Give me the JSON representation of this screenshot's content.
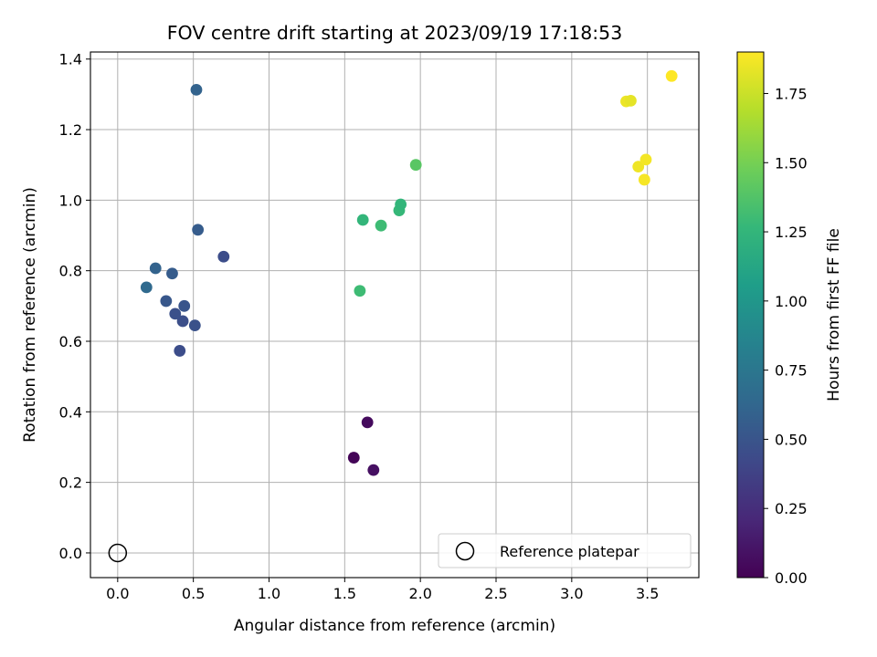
{
  "chart_data": {
    "type": "scatter",
    "title": "FOV centre drift starting at 2023/09/19 17:18:53",
    "xlabel": "Angular distance from reference (arcmin)",
    "ylabel": "Rotation from reference (arcmin)",
    "xlim": [
      -0.18,
      3.84
    ],
    "ylim": [
      -0.07,
      1.42
    ],
    "x_ticks": [
      "0.0",
      "0.5",
      "1.0",
      "1.5",
      "2.0",
      "2.5",
      "3.0",
      "3.5"
    ],
    "x_tick_values": [
      0,
      0.5,
      1.0,
      1.5,
      2.0,
      2.5,
      3.0,
      3.5
    ],
    "y_ticks": [
      "0.0",
      "0.2",
      "0.4",
      "0.6",
      "0.8",
      "1.0",
      "1.2",
      "1.4"
    ],
    "y_tick_values": [
      0,
      0.2,
      0.4,
      0.6,
      0.8,
      1.0,
      1.2,
      1.4
    ],
    "grid": true,
    "colorbar": {
      "label": "Hours from first FF file",
      "colormap": "viridis",
      "range": [
        0,
        1.9
      ],
      "ticks": [
        "0.00",
        "0.25",
        "0.50",
        "0.75",
        "1.00",
        "1.25",
        "1.50",
        "1.75"
      ],
      "tick_values": [
        0,
        0.25,
        0.5,
        0.75,
        1.0,
        1.25,
        1.5,
        1.75
      ]
    },
    "reference_point": {
      "x": 0,
      "y": 0
    },
    "legend": {
      "position": "bottom-right",
      "label": "Reference platepar"
    },
    "points": [
      {
        "x": 1.56,
        "y": 0.27,
        "c": 0.02
      },
      {
        "x": 1.65,
        "y": 0.37,
        "c": 0.05
      },
      {
        "x": 1.69,
        "y": 0.235,
        "c": 0.08
      },
      {
        "x": 0.41,
        "y": 0.573,
        "c": 0.45
      },
      {
        "x": 0.51,
        "y": 0.645,
        "c": 0.48
      },
      {
        "x": 0.43,
        "y": 0.657,
        "c": 0.46
      },
      {
        "x": 0.38,
        "y": 0.678,
        "c": 0.47
      },
      {
        "x": 0.44,
        "y": 0.7,
        "c": 0.5
      },
      {
        "x": 0.32,
        "y": 0.714,
        "c": 0.52
      },
      {
        "x": 0.19,
        "y": 0.753,
        "c": 0.65
      },
      {
        "x": 0.36,
        "y": 0.792,
        "c": 0.55
      },
      {
        "x": 0.25,
        "y": 0.807,
        "c": 0.6
      },
      {
        "x": 0.7,
        "y": 0.84,
        "c": 0.45
      },
      {
        "x": 0.53,
        "y": 0.916,
        "c": 0.55
      },
      {
        "x": 0.52,
        "y": 1.313,
        "c": 0.6
      },
      {
        "x": 1.6,
        "y": 0.743,
        "c": 1.3
      },
      {
        "x": 1.62,
        "y": 0.944,
        "c": 1.25
      },
      {
        "x": 1.74,
        "y": 0.928,
        "c": 1.3
      },
      {
        "x": 1.86,
        "y": 0.971,
        "c": 1.27
      },
      {
        "x": 1.87,
        "y": 0.988,
        "c": 1.25
      },
      {
        "x": 1.97,
        "y": 1.1,
        "c": 1.4
      },
      {
        "x": 3.36,
        "y": 1.28,
        "c": 1.85
      },
      {
        "x": 3.39,
        "y": 1.282,
        "c": 1.83
      },
      {
        "x": 3.44,
        "y": 1.095,
        "c": 1.86
      },
      {
        "x": 3.48,
        "y": 1.058,
        "c": 1.88
      },
      {
        "x": 3.49,
        "y": 1.115,
        "c": 1.87
      },
      {
        "x": 3.66,
        "y": 1.352,
        "c": 1.9
      }
    ]
  }
}
